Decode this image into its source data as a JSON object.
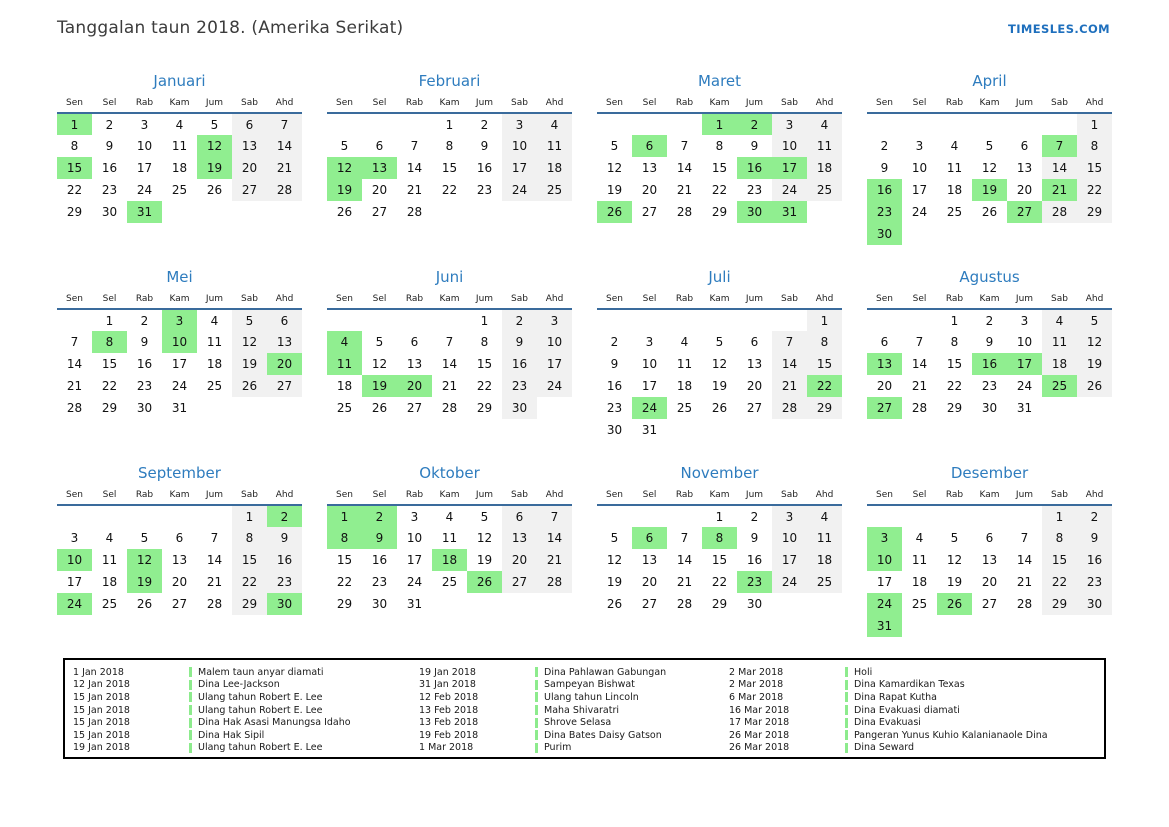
{
  "header": {
    "title": "Tanggalan taun 2018. (Amerika Serikat)",
    "logo": "TIMESLES.COM"
  },
  "colors": {
    "accent_blue": "#1e6fbd",
    "title_blue": "#2e7cbe",
    "line_blue": "#3a6b9c",
    "weekend_bg": "#f1f1f1",
    "highlight_green": "#90ee90",
    "tick_green": "#8deb8d"
  },
  "calendar": {
    "weekdays": [
      "Sen",
      "Sel",
      "Rab",
      "Kam",
      "Jum",
      "Sab",
      "Ahd"
    ],
    "weekend_columns": [
      5,
      6
    ],
    "months": [
      {
        "name": "Januari",
        "first_dow": 0,
        "days": 31,
        "highlights": [
          1,
          12,
          15,
          19,
          31
        ]
      },
      {
        "name": "Februari",
        "first_dow": 3,
        "days": 28,
        "highlights": [
          12,
          13,
          19
        ]
      },
      {
        "name": "Maret",
        "first_dow": 3,
        "days": 31,
        "highlights": [
          1,
          2,
          6,
          16,
          17,
          26,
          30,
          31
        ]
      },
      {
        "name": "April",
        "first_dow": 6,
        "days": 30,
        "highlights": [
          7,
          16,
          19,
          21,
          23,
          27,
          30
        ]
      },
      {
        "name": "Mei",
        "first_dow": 1,
        "days": 31,
        "highlights": [
          3,
          8,
          10,
          20
        ]
      },
      {
        "name": "Juni",
        "first_dow": 4,
        "days": 30,
        "highlights": [
          4,
          11,
          19,
          20
        ]
      },
      {
        "name": "Juli",
        "first_dow": 6,
        "days": 31,
        "highlights": [
          22,
          24
        ]
      },
      {
        "name": "Agustus",
        "first_dow": 2,
        "days": 31,
        "highlights": [
          13,
          16,
          17,
          25,
          27
        ]
      },
      {
        "name": "September",
        "first_dow": 5,
        "days": 30,
        "highlights": [
          2,
          10,
          12,
          19,
          24,
          30
        ]
      },
      {
        "name": "Oktober",
        "first_dow": 0,
        "days": 31,
        "highlights": [
          1,
          2,
          8,
          9,
          18,
          26
        ]
      },
      {
        "name": "November",
        "first_dow": 3,
        "days": 30,
        "highlights": [
          6,
          8,
          23
        ]
      },
      {
        "name": "Desember",
        "first_dow": 5,
        "days": 31,
        "highlights": [
          3,
          10,
          24,
          26,
          31
        ]
      }
    ]
  },
  "legend": {
    "columns": [
      {
        "entries": [
          {
            "date": "1 Jan 2018",
            "name": "Malem taun anyar diamati"
          },
          {
            "date": "12 Jan 2018",
            "name": "Dina Lee-Jackson"
          },
          {
            "date": "15 Jan 2018",
            "name": "Ulang tahun Robert E. Lee"
          },
          {
            "date": "15 Jan 2018",
            "name": "Ulang tahun Robert E. Lee"
          },
          {
            "date": "15 Jan 2018",
            "name": "Dina Hak Asasi Manungsa Idaho"
          },
          {
            "date": "15 Jan 2018",
            "name": "Dina Hak Sipil"
          },
          {
            "date": "19 Jan 2018",
            "name": "Ulang tahun Robert E. Lee"
          }
        ]
      },
      {
        "entries": [
          {
            "date": "19 Jan 2018",
            "name": "Dina Pahlawan Gabungan"
          },
          {
            "date": "31 Jan 2018",
            "name": "Sampeyan Bishwat"
          },
          {
            "date": "12 Feb 2018",
            "name": "Ulang tahun Lincoln"
          },
          {
            "date": "13 Feb 2018",
            "name": "Maha Shivaratri"
          },
          {
            "date": "13 Feb 2018",
            "name": "Shrove Selasa"
          },
          {
            "date": "19 Feb 2018",
            "name": "Dina Bates Daisy Gatson"
          },
          {
            "date": "1 Mar 2018",
            "name": "Purim"
          }
        ]
      },
      {
        "entries": [
          {
            "date": "2 Mar 2018",
            "name": "Holi"
          },
          {
            "date": "2 Mar 2018",
            "name": "Dina Kamardikan Texas"
          },
          {
            "date": "6 Mar 2018",
            "name": "Dina Rapat Kutha"
          },
          {
            "date": "16 Mar 2018",
            "name": "Dina Evakuasi diamati"
          },
          {
            "date": "17 Mar 2018",
            "name": "Dina Evakuasi"
          },
          {
            "date": "26 Mar 2018",
            "name": "Pangeran Yunus Kuhio Kalanianaole Dina"
          },
          {
            "date": "26 Mar 2018",
            "name": "Dina Seward"
          }
        ]
      }
    ]
  }
}
